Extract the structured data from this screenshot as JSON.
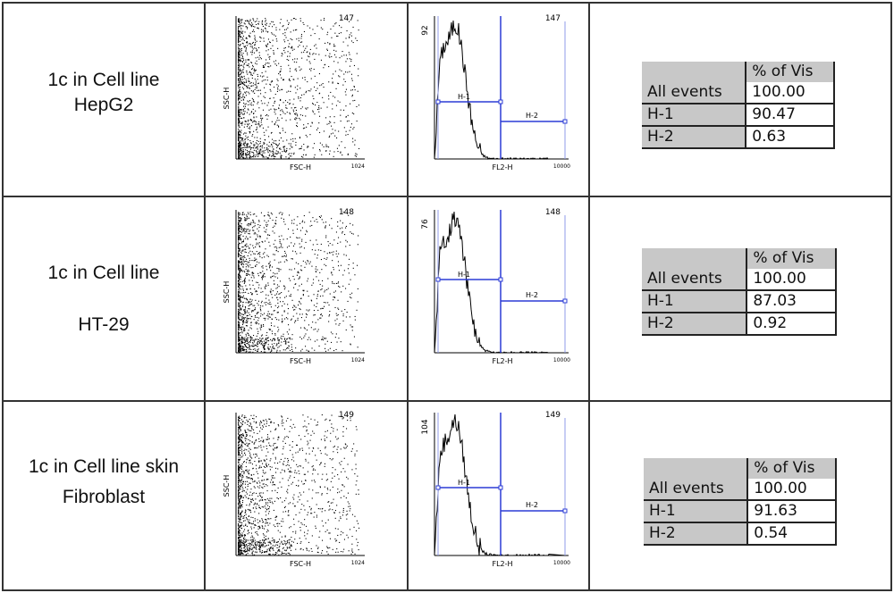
{
  "columns": {
    "header_label": "% of Vis"
  },
  "scatter_axes": {
    "x_label": "FSC-H",
    "y_label": "SSC-H",
    "x_max": "1024"
  },
  "histogram_axes": {
    "x_label": "FL2-H",
    "x_max": "10000",
    "gate1": "H-1",
    "gate2": "H-2"
  },
  "rows": [
    {
      "label_line1": "1c in Cell line",
      "label_line2": "HepG2",
      "scatter_id": "147",
      "hist_id": "147",
      "hist_ymax": "92",
      "stats": [
        {
          "name": "All events",
          "value": "100.00"
        },
        {
          "name": "H-1",
          "value": "90.47"
        },
        {
          "name": "H-2",
          "value": "0.63"
        }
      ]
    },
    {
      "label_line1": "1c in Cell line",
      "label_line2": "HT-29",
      "scatter_id": "148",
      "hist_id": "148",
      "hist_ymax": "76",
      "stats": [
        {
          "name": "All events",
          "value": "100.00"
        },
        {
          "name": "H-1",
          "value": "87.03"
        },
        {
          "name": "H-2",
          "value": "0.92"
        }
      ]
    },
    {
      "label_line1": "1c in Cell line skin",
      "label_line2": "Fibroblast",
      "scatter_id": "149",
      "hist_id": "149",
      "hist_ymax": "104",
      "stats": [
        {
          "name": "All events",
          "value": "100.00"
        },
        {
          "name": "H-1",
          "value": "91.63"
        },
        {
          "name": "H-2",
          "value": "0.54"
        }
      ]
    }
  ]
}
